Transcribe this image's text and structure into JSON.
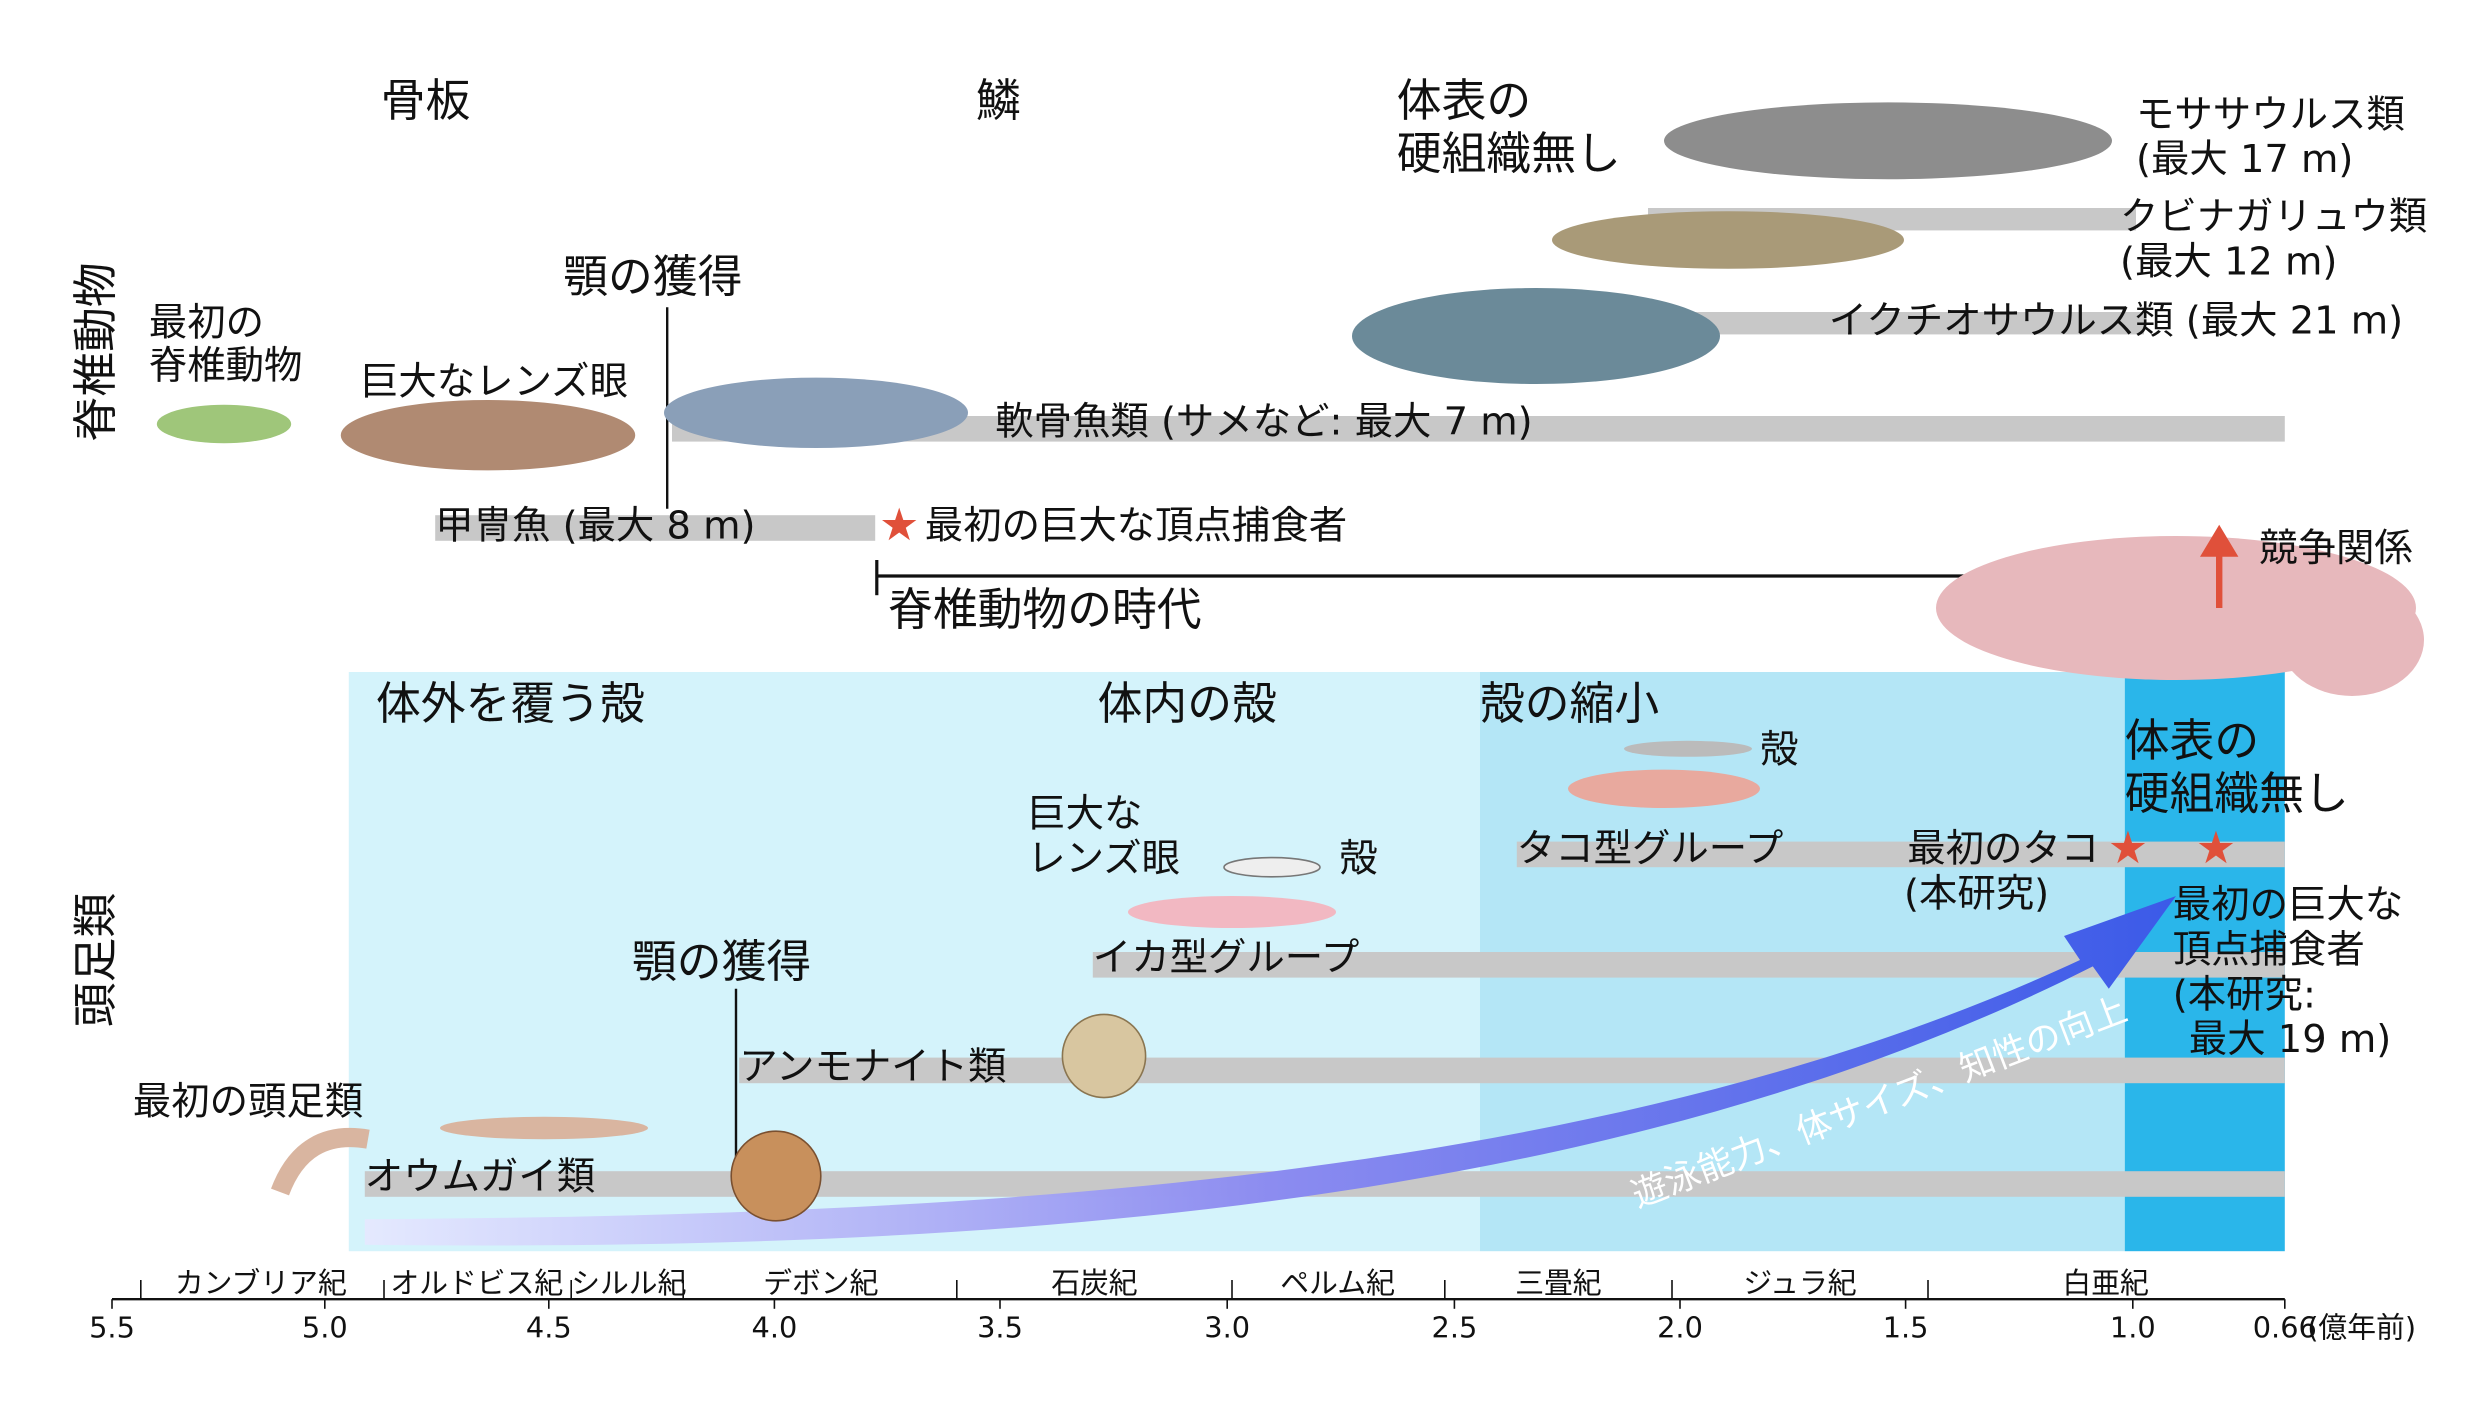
{
  "vertebrates": {
    "side_label": "脊椎動物",
    "top_labels": [
      "骨板",
      "鱗"
    ],
    "top_no_hard_tissue": [
      "体表の",
      "硬組織無し"
    ],
    "mosasaur": [
      "モササウルス類",
      "(最大 17 m)"
    ],
    "plesiosaur": [
      "クビナガリュウ類",
      "(最大 12 m)"
    ],
    "ichthyosaur": "イクチオサウルス類 (最大 21 m)",
    "jaw": "顎の獲得",
    "first_vertebrate": [
      "最初の",
      "脊椎動物"
    ],
    "lens_eye": "巨大なレンズ眼",
    "cartilaginous": "軟骨魚類 (サメなど: 最大 7 m)",
    "armored_fish": "甲冑魚 (最大 8 m)",
    "first_apex": "最初の巨大な頂点捕食者",
    "era": "脊椎動物の時代",
    "competition": "競争関係"
  },
  "cephalopods": {
    "side_label": "頭足類",
    "phases": [
      "体外を覆う殻",
      "体内の殻",
      "殻の縮小"
    ],
    "octo_shell": "殻",
    "octopus_group": "タコ型グループ",
    "first_octopus": [
      "最初のタコ",
      "(本研究)"
    ],
    "no_hard_tissue": [
      "体表の",
      "硬組織無し"
    ],
    "first_apex": [
      "最初の巨大な",
      "頂点捕食者",
      "(本研究:",
      "最大 19 m)"
    ],
    "lens_eye": [
      "巨大な",
      "レンズ眼"
    ],
    "squid_shell": "殻",
    "squid_group": "イカ型グループ",
    "jaw": "顎の獲得",
    "ammonite": "アンモナイト類",
    "first_cephalopod": "最初の頭足類",
    "nautilus": "オウムガイ類",
    "arrow": "遊泳能力、体サイズ、知性の向上"
  },
  "axis": {
    "periods": [
      "カンブリア紀",
      "オルドビス紀",
      "シルル紀",
      "デボン紀",
      "石炭紀",
      "ペルム紀",
      "三畳紀",
      "ジュラ紀",
      "白亜紀"
    ],
    "ticks": [
      "5.5",
      "5.0",
      "4.5",
      "4.0",
      "3.5",
      "3.0",
      "2.5",
      "2.0",
      "1.5",
      "1.0",
      "0.66"
    ],
    "unit": "(億年前)"
  }
}
